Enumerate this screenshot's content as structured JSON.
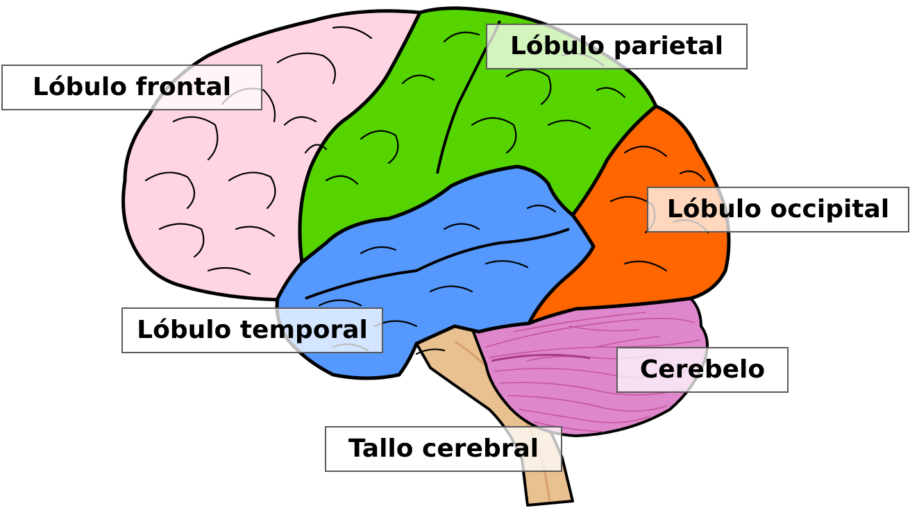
{
  "labels": {
    "frontal": "Lóbulo frontal",
    "parietal": "Lóbulo parietal",
    "occipital": "Lóbulo occipital",
    "temporal": "Lóbulo temporal",
    "cerebellum": "Cerebelo",
    "brainstem": "Tallo cerebral"
  },
  "colors": {
    "frontal": "#ffd5e4",
    "parietal": "#55d400",
    "occipital": "#ff6600",
    "temporal": "#5599ff",
    "cerebellum": "#de87cd",
    "brainstem": "#e9c08f",
    "outline": "#000000"
  }
}
